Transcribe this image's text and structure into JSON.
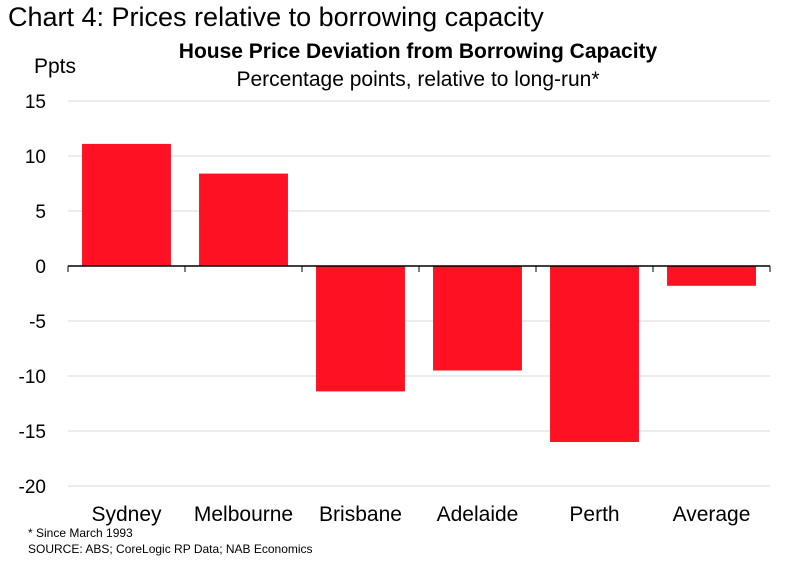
{
  "header": {
    "heading": "Chart 4: Prices relative to borrowing capacity"
  },
  "chart_data": {
    "type": "bar",
    "title": "House Price Deviation from Borrowing Capacity",
    "subtitle": "Percentage points, relative to long-run*",
    "ylabel": "Ppts",
    "xlabel": "",
    "categories": [
      "Sydney",
      "Melbourne",
      "Brisbane",
      "Adelaide",
      "Perth",
      "Average"
    ],
    "values": [
      11.1,
      8.4,
      -11.4,
      -9.5,
      -16.0,
      -1.8
    ],
    "ylim": [
      -20,
      15
    ],
    "yticks": [
      15,
      10,
      5,
      0,
      -5,
      -10,
      -15,
      -20
    ],
    "grid": true,
    "legend": "none",
    "bar_color": "#fd1123"
  },
  "footer": {
    "footnote": "* Since March 1993",
    "source": "SOURCE: ABS; CoreLogic RP Data; NAB Economics"
  }
}
